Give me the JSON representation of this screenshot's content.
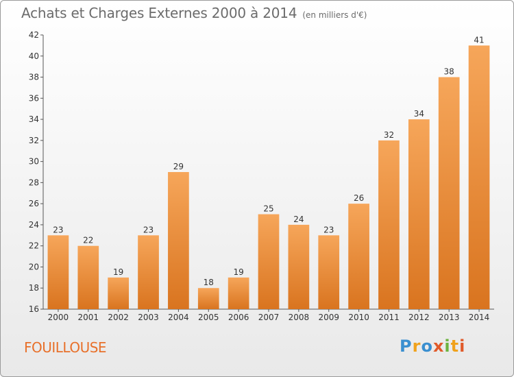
{
  "header": {
    "title": "Achats et Charges Externes 2000 à 2014",
    "unit": "(en milliers d'€)"
  },
  "footer": {
    "commune": "FOUILLOUSE",
    "logo_letters": [
      "P",
      "r",
      "o",
      "x",
      "i",
      "t",
      "i"
    ]
  },
  "colors": {
    "bar_light": "#f6a65a",
    "bar_dark": "#d9741f",
    "commune_text": "#e8702a",
    "axis": "#555555",
    "grid": "#dddddd"
  },
  "chart_data": {
    "type": "bar",
    "title": "Achats et Charges Externes 2000 à 2014",
    "subtitle": "(en milliers d'€)",
    "categories": [
      "2000",
      "2001",
      "2002",
      "2003",
      "2004",
      "2005",
      "2006",
      "2007",
      "2008",
      "2009",
      "2010",
      "2011",
      "2012",
      "2013",
      "2014"
    ],
    "values": [
      23,
      22,
      19,
      23,
      29,
      18,
      19,
      25,
      24,
      23,
      26,
      32,
      34,
      38,
      41
    ],
    "ylim": [
      16,
      42
    ],
    "yticks": [
      16,
      18,
      20,
      22,
      24,
      26,
      28,
      30,
      32,
      34,
      36,
      38,
      40,
      42
    ],
    "grid": false,
    "data_labels": true
  }
}
